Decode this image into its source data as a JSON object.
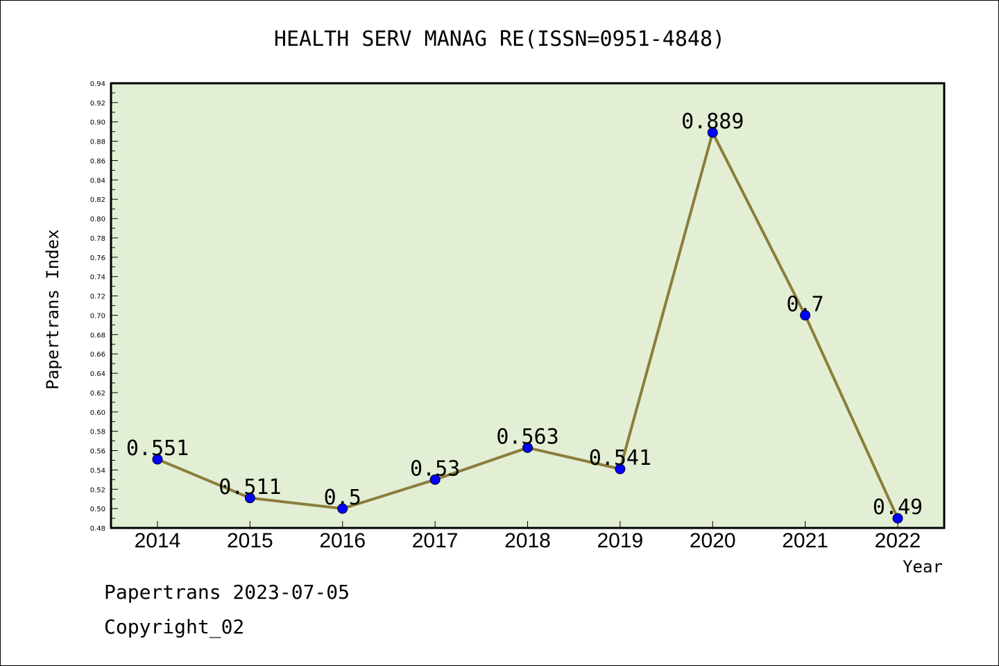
{
  "footer": {
    "date_line": "Papertrans 2023-07-05",
    "copyright_line": "Copyright_02"
  },
  "colors": {
    "plot_background": "#e2efd5",
    "line": "#8b7d3a",
    "marker": "#0000ff"
  },
  "chart_data": {
    "type": "line",
    "title": "HEALTH SERV MANAG RE(ISSN=0951-4848)",
    "xlabel": "Year",
    "ylabel": "Papertrans Index",
    "categories": [
      "2014",
      "2015",
      "2016",
      "2017",
      "2018",
      "2019",
      "2020",
      "2021",
      "2022"
    ],
    "series": [
      {
        "values": [
          0.551,
          0.511,
          0.5,
          0.53,
          0.563,
          0.541,
          0.889,
          0.7,
          0.49
        ],
        "labels": [
          "0.551",
          "0.511",
          "0.5",
          "0.53",
          "0.563",
          "0.541",
          "0.889",
          "0.7",
          "0.49"
        ]
      }
    ],
    "ylim": [
      0.48,
      0.94
    ],
    "yticks": [
      "0.48",
      "0.50",
      "0.52",
      "0.54",
      "0.56",
      "0.58",
      "0.60",
      "0.62",
      "0.64",
      "0.66",
      "0.68",
      "0.70",
      "0.72",
      "0.74",
      "0.76",
      "0.78",
      "0.80",
      "0.82",
      "0.84",
      "0.86",
      "0.88",
      "0.90",
      "0.92",
      "0.94"
    ],
    "grid": false,
    "legend": "none"
  }
}
